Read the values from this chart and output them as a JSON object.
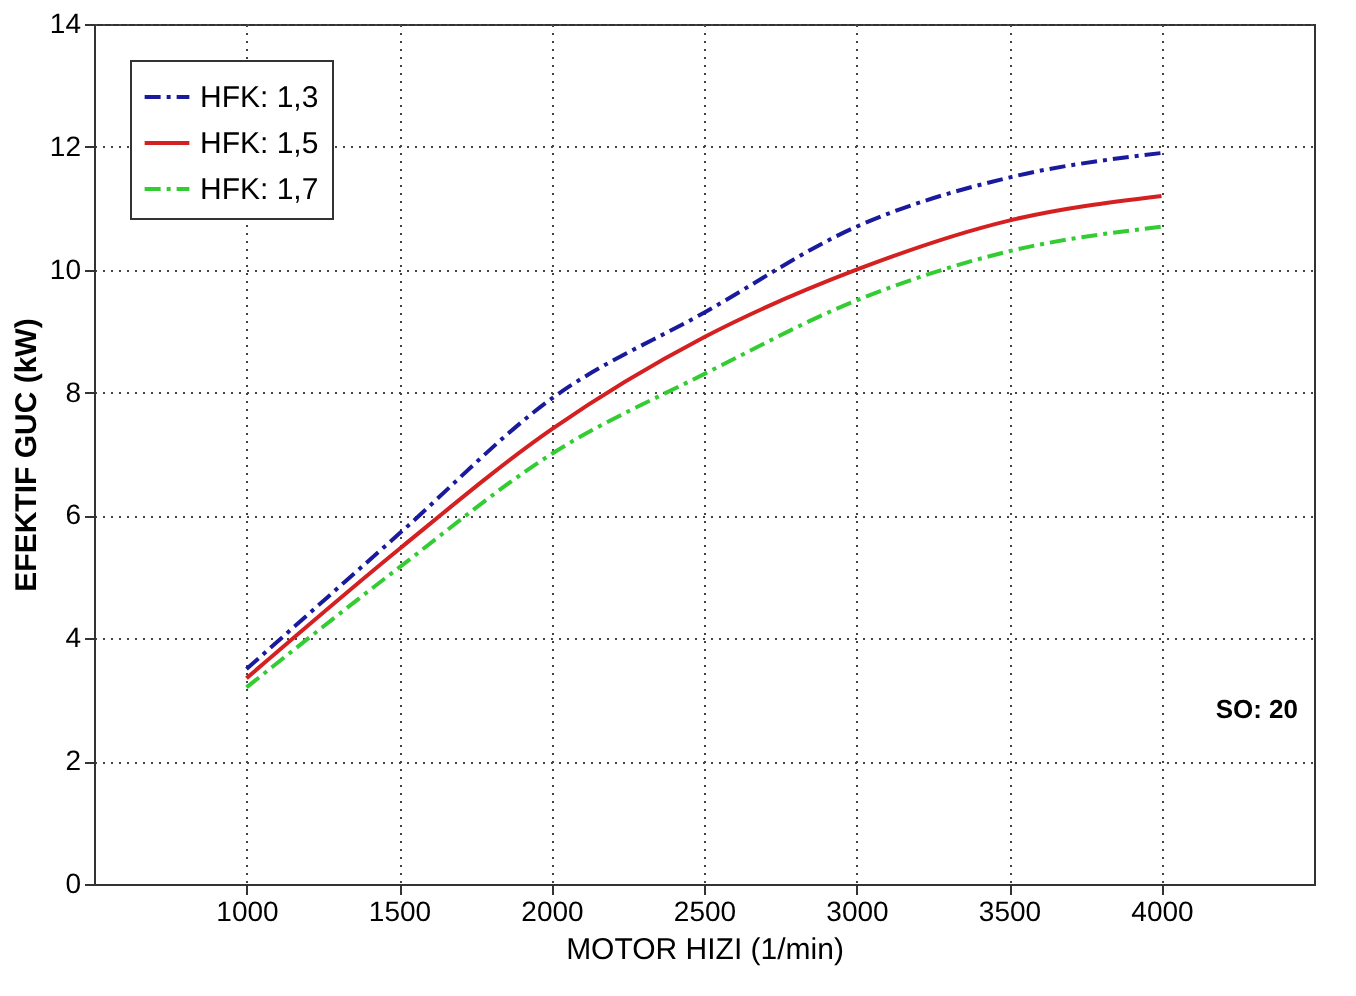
{
  "chart_data": {
    "type": "line",
    "xlabel": "MOTOR HIZI (1/min)",
    "ylabel": "EFEKTIF GUC (kW)",
    "x": [
      1000,
      1500,
      2000,
      2500,
      3000,
      3500,
      4000
    ],
    "series": [
      {
        "name": "HFK: 1,3",
        "color": "#1a1a9c",
        "line_style": "dashdot",
        "values": [
          3.5,
          5.7,
          7.9,
          9.3,
          10.7,
          11.5,
          11.9
        ]
      },
      {
        "name": "HFK: 1,5",
        "color": "#d42020",
        "line_style": "solid",
        "values": [
          3.35,
          5.45,
          7.4,
          8.9,
          10.0,
          10.8,
          11.2
        ]
      },
      {
        "name": "HFK: 1,7",
        "color": "#33cc33",
        "line_style": "dashdot",
        "values": [
          3.2,
          5.15,
          7.0,
          8.3,
          9.5,
          10.3,
          10.7
        ]
      }
    ],
    "xlim": [
      500,
      4500
    ],
    "xticks": [
      1000,
      1500,
      2000,
      2500,
      3000,
      3500,
      4000
    ],
    "ylim": [
      0,
      14
    ],
    "yticks": [
      0,
      2,
      4,
      6,
      8,
      10,
      12,
      14
    ],
    "grid": true,
    "legend": "top left",
    "marker": "none",
    "annotations": [
      "SO: 20"
    ]
  }
}
